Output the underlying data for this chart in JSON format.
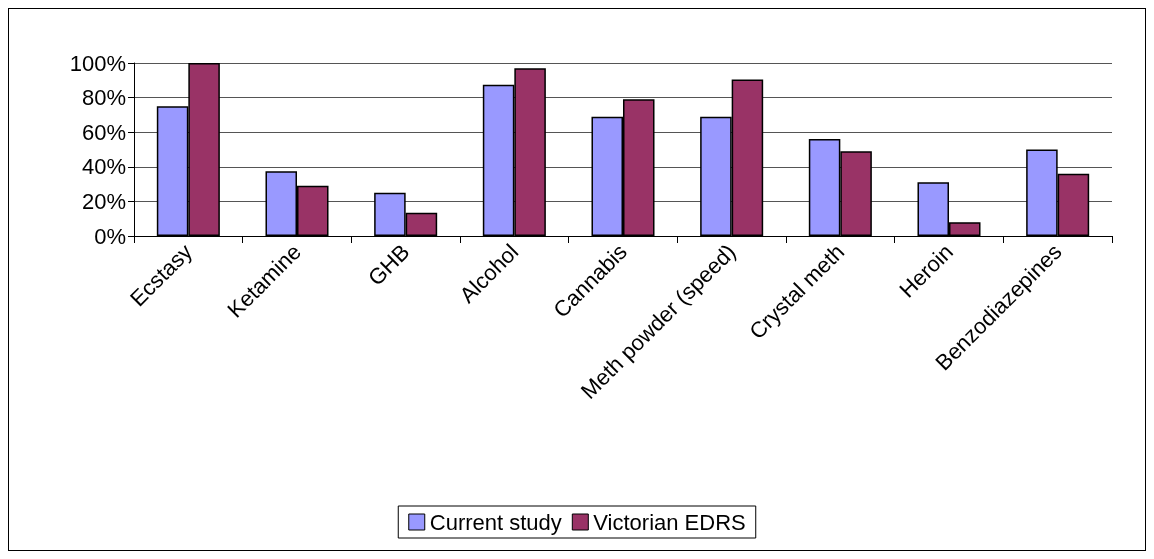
{
  "chart_data": {
    "type": "bar",
    "categories": [
      "Ecstasy",
      "Ketamine",
      "GHB",
      "Alcohol",
      "Cannabis",
      "Meth powder (speed)",
      "Crystal meth",
      "Heroin",
      "Benzodiazepines"
    ],
    "series": [
      {
        "name": "Current study",
        "color": "#9999ff",
        "values": [
          75,
          37.5,
          25,
          87.5,
          69,
          69,
          56,
          31,
          50
        ]
      },
      {
        "name": "Victorian EDRS",
        "color": "#993366",
        "values": [
          100,
          29,
          13.5,
          97,
          79,
          90.5,
          49,
          8,
          36
        ]
      }
    ],
    "ylim": [
      0,
      100
    ],
    "yticks": [
      {
        "value": 0,
        "label": "0%"
      },
      {
        "value": 20,
        "label": "20%"
      },
      {
        "value": 40,
        "label": "40%"
      },
      {
        "value": 60,
        "label": "60%"
      },
      {
        "value": 80,
        "label": "80%"
      },
      {
        "value": 100,
        "label": "100%"
      }
    ],
    "grid": "y",
    "legend": "bottom"
  }
}
